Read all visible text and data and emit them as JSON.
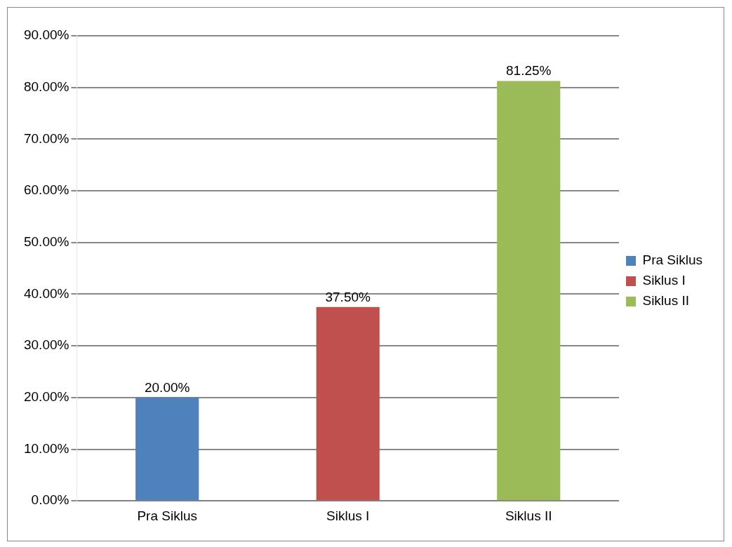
{
  "chart_data": {
    "type": "bar",
    "categories": [
      "Pra Siklus",
      "Siklus I",
      "Siklus II"
    ],
    "series": [
      {
        "name": "Pra Siklus",
        "color": "#4f81bd",
        "values": [
          20,
          null,
          null
        ],
        "value_labels": [
          "20.00%",
          null,
          null
        ]
      },
      {
        "name": "Siklus I",
        "color": "#c0504d",
        "values": [
          null,
          37.5,
          null
        ],
        "value_labels": [
          null,
          "37.50%",
          null
        ]
      },
      {
        "name": "Siklus II",
        "color": "#9bbb59",
        "values": [
          null,
          null,
          81.25
        ],
        "value_labels": [
          null,
          null,
          "81.25%"
        ]
      }
    ],
    "ylim": [
      0,
      90
    ],
    "yticks": [
      {
        "value": 0,
        "label": "0.00%"
      },
      {
        "value": 10,
        "label": "10.00%"
      },
      {
        "value": 20,
        "label": "20.00%"
      },
      {
        "value": 30,
        "label": "30.00%"
      },
      {
        "value": 40,
        "label": "40.00%"
      },
      {
        "value": 50,
        "label": "50.00%"
      },
      {
        "value": 60,
        "label": "60.00%"
      },
      {
        "value": 70,
        "label": "70.00%"
      },
      {
        "value": 80,
        "label": "80.00%"
      },
      {
        "value": 90,
        "label": "90.00%"
      }
    ],
    "grid": "y",
    "legend": "right"
  }
}
